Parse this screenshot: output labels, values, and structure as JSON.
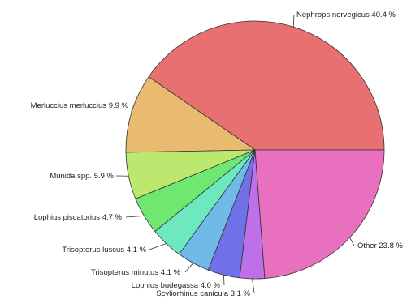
{
  "chart_data": {
    "type": "pie",
    "title": "",
    "categories": [
      "Nephrops norvegicus",
      "Merluccius merluccius",
      "Munida spp.",
      "Lophius piscatorius",
      "Trisopterus luscus",
      "Trisopterus minutus",
      "Lophius budegassa",
      "Scyliorhinus canicula",
      "Other"
    ],
    "values": [
      40.4,
      9.9,
      5.9,
      4.7,
      4.1,
      4.1,
      4.0,
      3.1,
      23.8
    ],
    "labels": [
      "Nephrops norvegicus 40.4 %",
      "Merluccius merluccius  9.9 %",
      "Munida spp.  5.9 %",
      "Lophius piscatorius  4.7 %",
      "Trisopterus luscus  4.1 %",
      "Trisopterus minutus  4.1 %",
      "Lophius budegassa  4.0 %",
      "Scyliorhinus canicula  3.1 %",
      "Other 23.8 %"
    ],
    "colors": [
      "#e87070",
      "#e8bb70",
      "#bde870",
      "#6ee870",
      "#6ee8bf",
      "#70bae8",
      "#7070e8",
      "#be70e8",
      "#e870be"
    ],
    "start_angle_deg": 0,
    "direction": "counterclockwise",
    "legend": "none"
  }
}
